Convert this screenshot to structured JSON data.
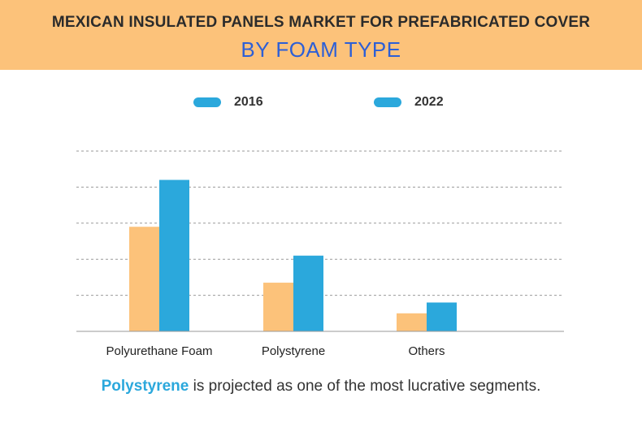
{
  "header": {
    "title_line1": "MEXICAN INSULATED PANELS MARKET FOR PREFABRICATED COVER",
    "title_line2": "BY FOAM TYPE"
  },
  "colors": {
    "banner": "#fcc27a",
    "series_2016": "#fcc27a",
    "series_2022": "#2ba8dc",
    "title_accent": "#2d5fd6"
  },
  "chart_data": {
    "type": "bar",
    "categories": [
      "Polyurethane Foam",
      "Polystyrene",
      "Others"
    ],
    "series": [
      {
        "name": "2016",
        "values": [
          2.9,
          1.35,
          0.5
        ]
      },
      {
        "name": "2022",
        "values": [
          4.2,
          2.1,
          0.8
        ]
      }
    ],
    "title": "MEXICAN INSULATED PANELS MARKET FOR PREFABRICATED COVER BY FOAM TYPE",
    "xlabel": "",
    "ylabel": "",
    "ylim": [
      0,
      5
    ],
    "grid": true,
    "legend": "top-center"
  },
  "footer": {
    "highlight": "Polystyrene",
    "text": " is projected as one of the most lucrative segments."
  }
}
